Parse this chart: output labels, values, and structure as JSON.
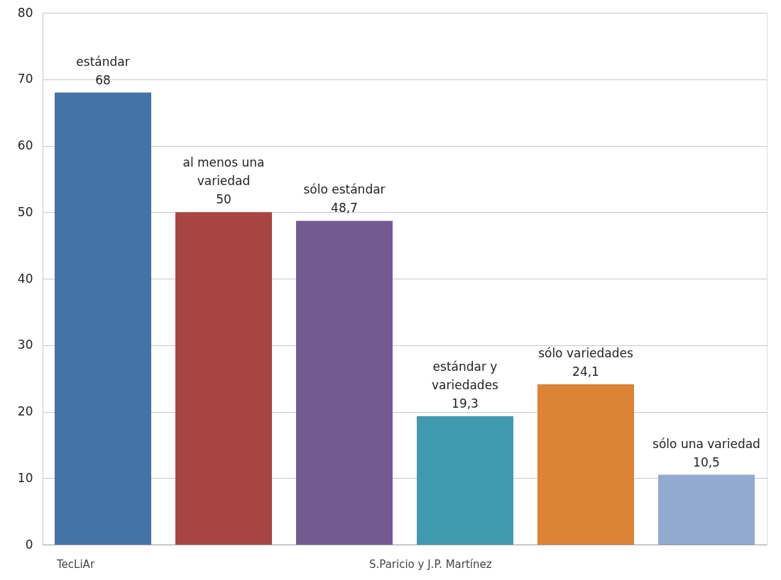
{
  "chart_data": {
    "type": "bar",
    "categories": [
      "estándar",
      "al menos una variedad",
      "sólo estándar",
      "estándar y variedades",
      "sólo variedades",
      "sólo una variedad"
    ],
    "values": [
      68,
      50,
      48.7,
      19.3,
      24.1,
      10.5
    ],
    "value_labels": [
      "68",
      "50",
      "48,7",
      "19,3",
      "24,1",
      "10,5"
    ],
    "colors": [
      "#4573a7",
      "#a84543",
      "#735a91",
      "#3f9ab0",
      "#dc8335",
      "#92a9d0"
    ],
    "ylim": [
      0,
      80
    ],
    "yticks": [
      0,
      10,
      20,
      30,
      40,
      50,
      60,
      70,
      80
    ],
    "grid": "y",
    "tick_labels": "y",
    "annotations": [
      "TecLiAr",
      "S.Paricio y J.P. Martínez"
    ]
  }
}
